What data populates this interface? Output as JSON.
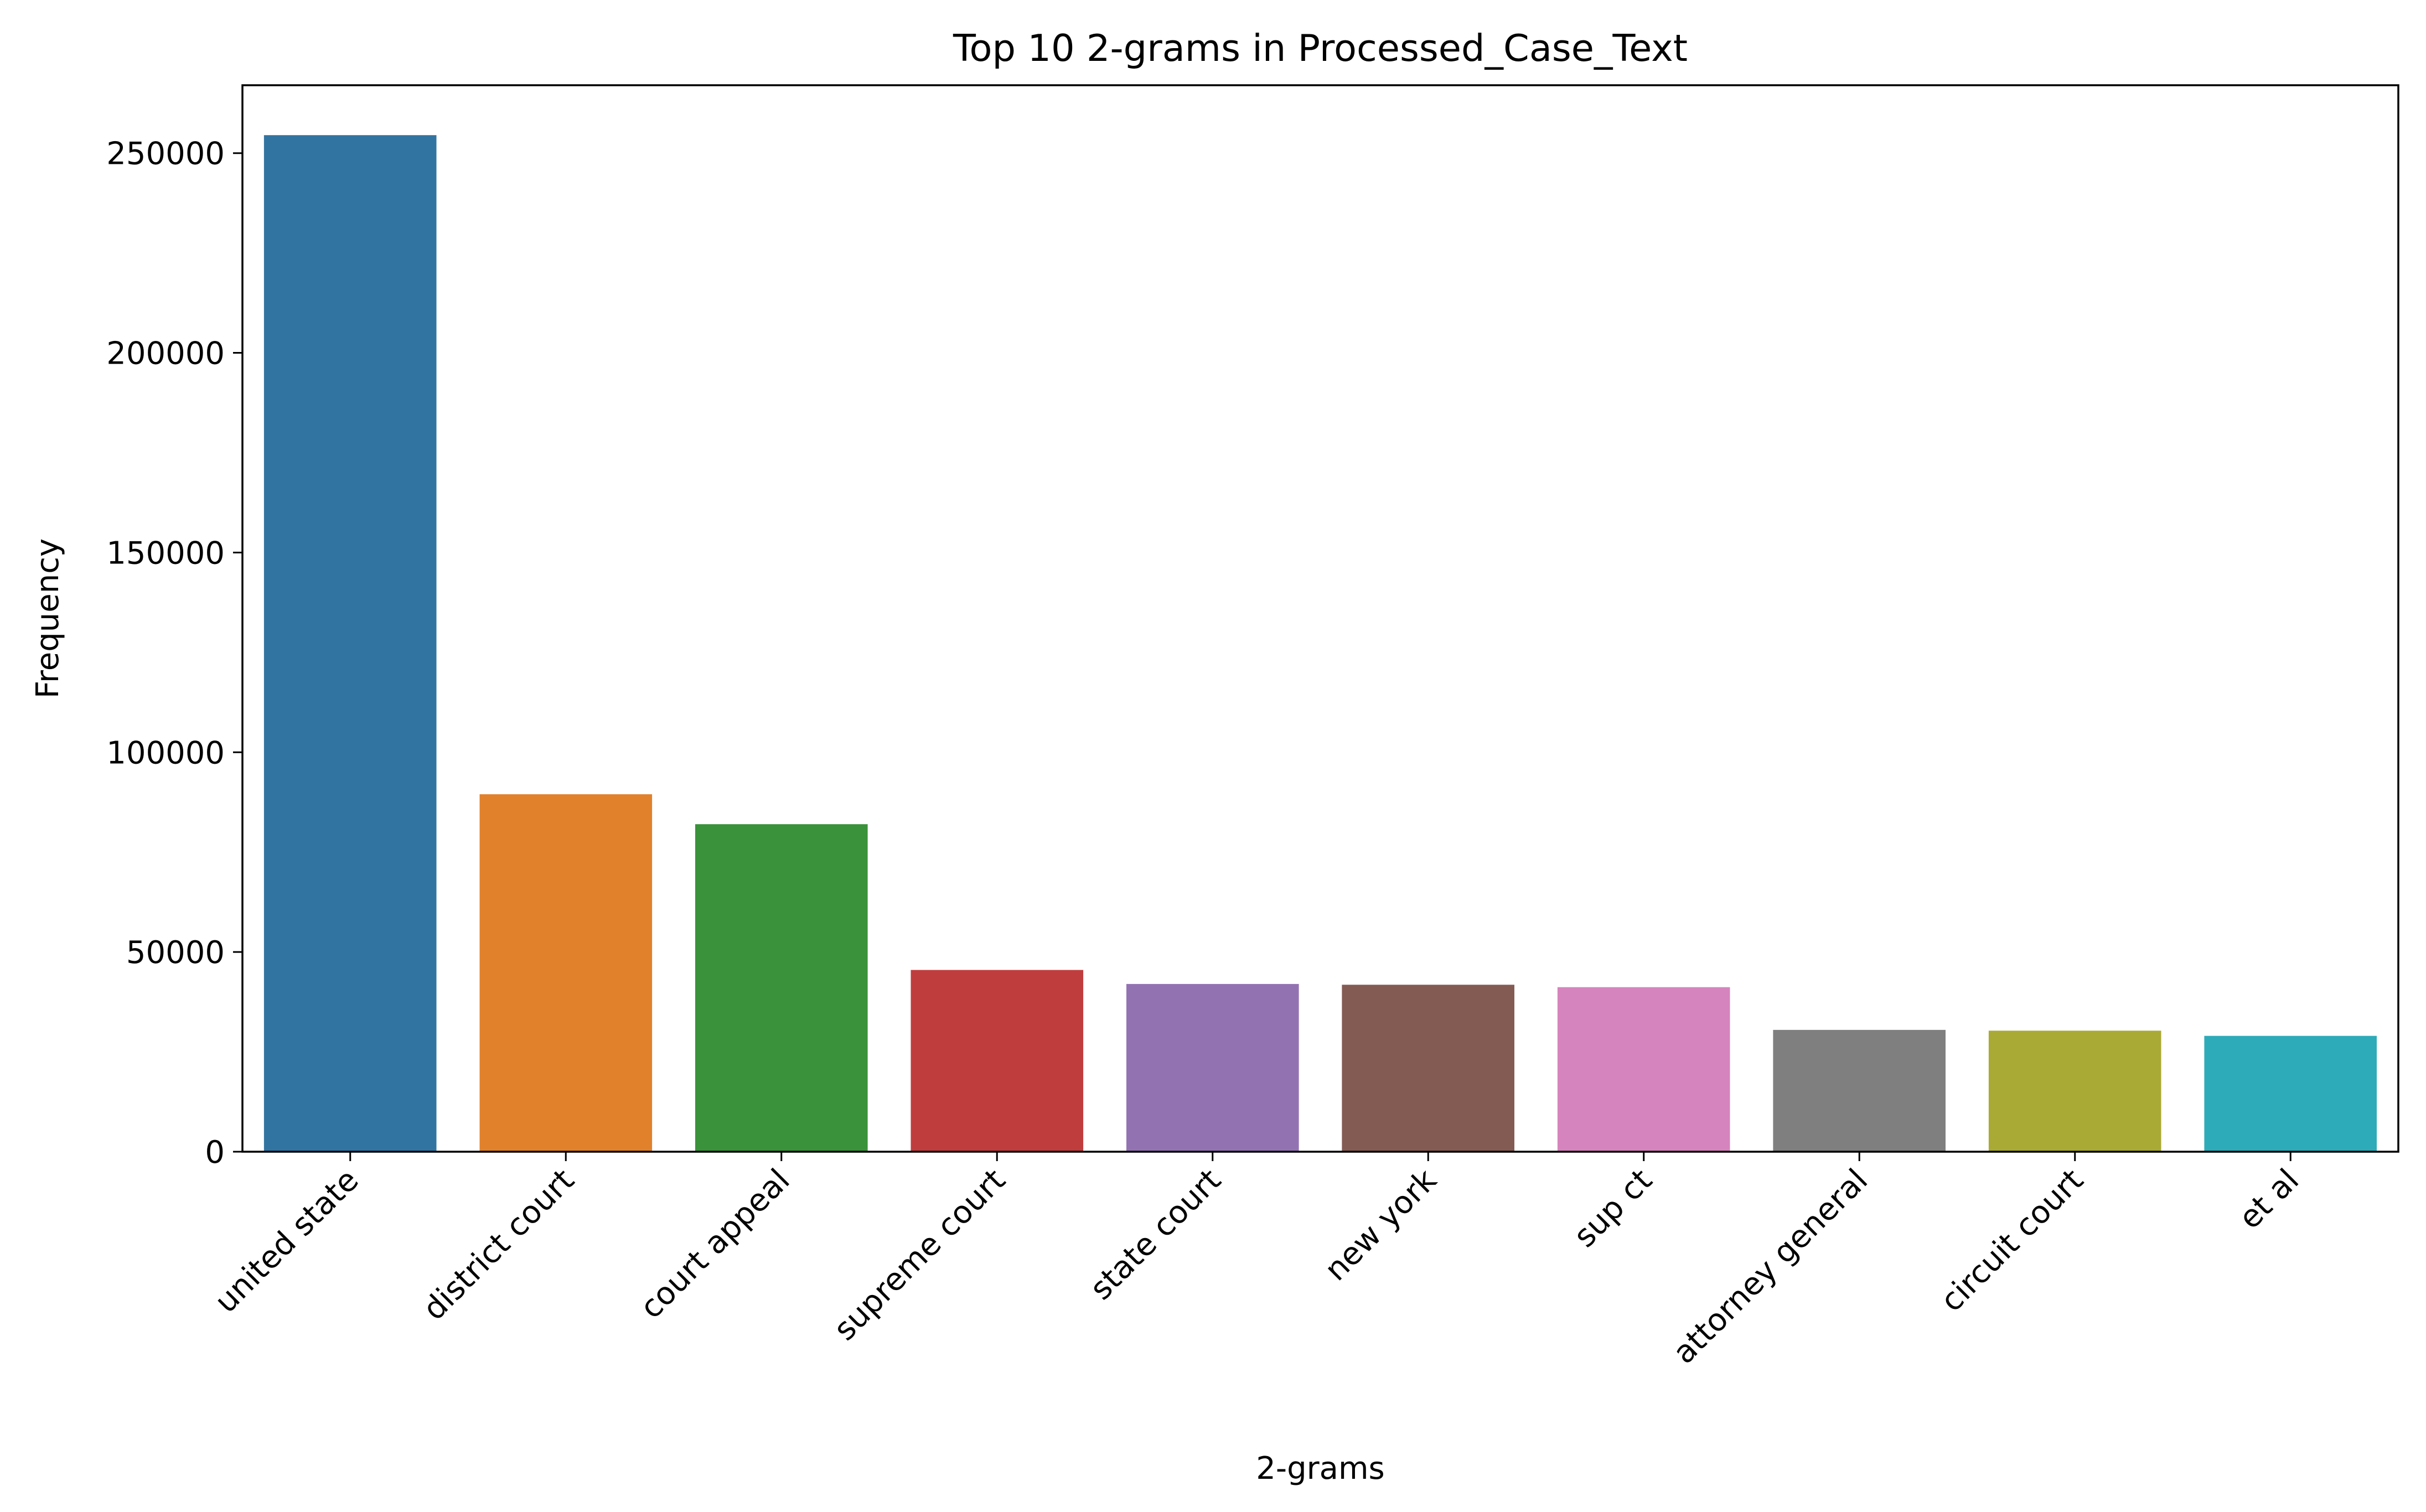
{
  "chart_data": {
    "type": "bar",
    "title": "Top 10 2-grams in Processed_Case_Text",
    "xlabel": "2-grams",
    "ylabel": "Frequency",
    "categories": [
      "united state",
      "district court",
      "court appeal",
      "supreme court",
      "state court",
      "new york",
      "sup ct",
      "attorney general",
      "circuit court",
      "et al"
    ],
    "values": [
      254500,
      89500,
      82000,
      45500,
      42000,
      41800,
      41200,
      30500,
      30300,
      29000
    ],
    "colors": [
      "#3274a1",
      "#e1812c",
      "#3a923a",
      "#c03d3e",
      "#9372b2",
      "#845b53",
      "#d684bd",
      "#7f7f7f",
      "#a9aa35",
      "#2eabb8"
    ],
    "ylim": [
      0,
      267000
    ],
    "yticks": [
      0,
      50000,
      100000,
      150000,
      200000,
      250000
    ],
    "ytick_labels": [
      "0",
      "50000",
      "100000",
      "150000",
      "200000",
      "250000"
    ],
    "grid": false,
    "legend": "none"
  }
}
